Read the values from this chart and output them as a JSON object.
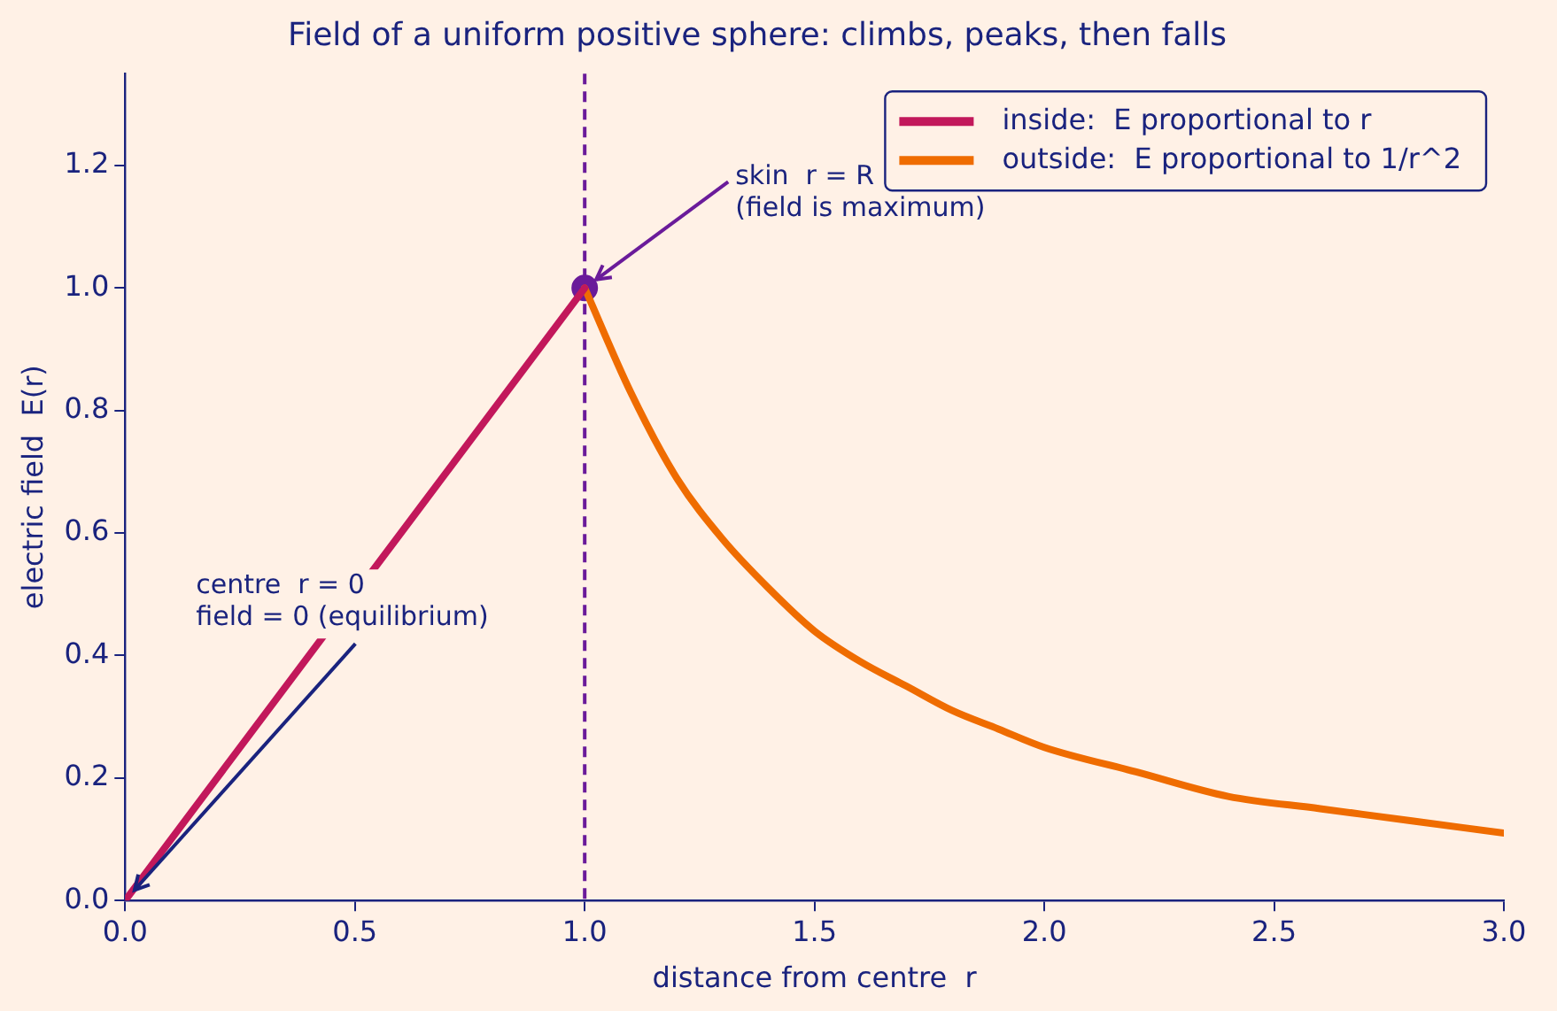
{
  "chart_data": {
    "type": "line",
    "title": "Field of a uniform positive sphere: climbs, peaks, then falls",
    "xlabel": "distance from centre  r",
    "ylabel": "electric field  E(r)",
    "series": [
      {
        "name": "inside:  E proportional to r",
        "type": "line",
        "color": "#c2185b",
        "x": [
          0,
          1
        ],
        "values": [
          0,
          1
        ]
      },
      {
        "name": "outside:  E proportional to 1/r^2",
        "type": "line",
        "color": "#ef6c00",
        "x": [
          1,
          1.1,
          1.2,
          1.3,
          1.4,
          1.5,
          1.6,
          1.7,
          1.8,
          1.9,
          2,
          2.2,
          2.4,
          2.6,
          2.8,
          3
        ],
        "values": [
          1,
          0.83,
          0.69,
          0.59,
          0.51,
          0.44,
          0.39,
          0.35,
          0.31,
          0.28,
          0.25,
          0.21,
          0.17,
          0.15,
          0.13,
          0.11
        ]
      },
      {
        "type": "scatter",
        "marker": "circle",
        "color": "#6a1b9a",
        "x": [
          1
        ],
        "values": [
          1
        ]
      }
    ],
    "xlim": [
      0,
      3
    ],
    "xticks": [
      {
        "value": 0,
        "label": "0.0"
      },
      0.5,
      {
        "value": 1,
        "label": "1.0"
      },
      1.5,
      {
        "value": 2,
        "label": "2.0"
      },
      2.5,
      {
        "value": 3,
        "label": "3.0"
      }
    ],
    "ylim": [
      0,
      1.35
    ],
    "yticks": [
      {
        "value": 0,
        "label": "0.0"
      },
      0.2,
      0.4,
      0.6,
      0.8,
      {
        "value": 1,
        "label": "1.0"
      },
      1.2
    ],
    "ref_lines": [
      {
        "axis": "x",
        "value": 1,
        "color": "#6a1b9a",
        "line_style": "dashed"
      }
    ],
    "annotations": [
      {
        "text": "skin  r = R\n(field is maximum)",
        "x": 1,
        "y": 1
      },
      {
        "text": "centre  r = 0\nfield = 0 (equilibrium)",
        "x": 0,
        "y": 0
      }
    ],
    "legend": "top right",
    "grid": false
  }
}
